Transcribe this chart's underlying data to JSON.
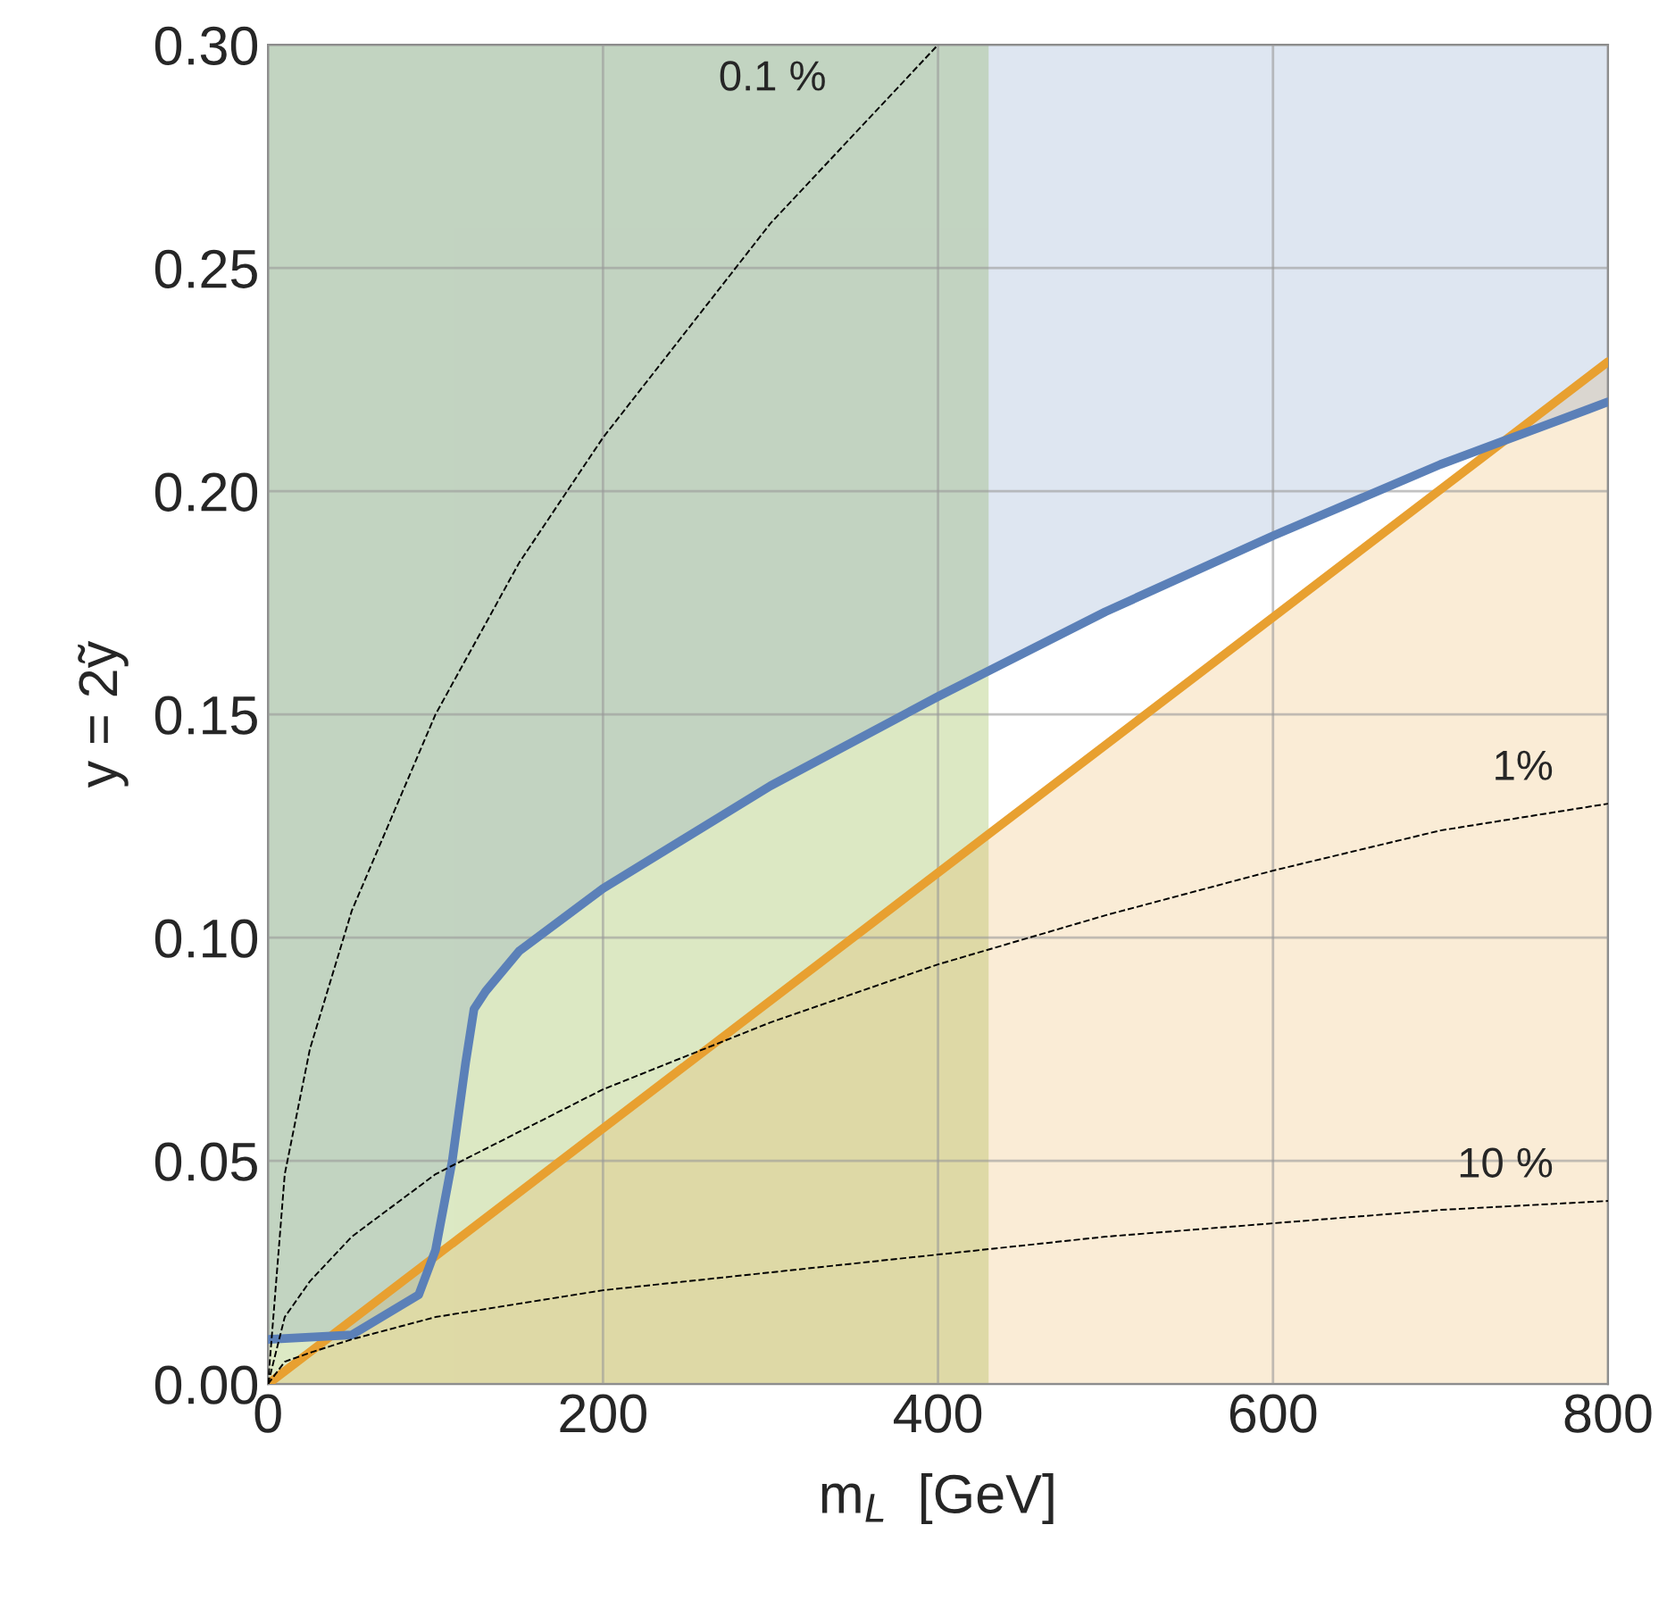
{
  "chart_data": {
    "type": "line",
    "xlabel": "m$_{L}$  [GeV]",
    "ylabel": "y = 2ỹ",
    "xlim": [
      0,
      800
    ],
    "ylim": [
      0,
      0.3
    ],
    "xticks": [
      0,
      200,
      400,
      600,
      800
    ],
    "yticks": [
      {
        "value": 0,
        "label": "0.00"
      },
      {
        "value": 0.05,
        "label": "0.05"
      },
      {
        "value": 0.1,
        "label": "0.10"
      },
      {
        "value": 0.15,
        "label": "0.15"
      },
      {
        "value": 0.2,
        "label": "0.20"
      },
      {
        "value": 0.25,
        "label": "0.25"
      },
      {
        "value": 0.3,
        "label": "0.30"
      }
    ],
    "grid": true,
    "legend": false,
    "marker": "none",
    "bands": [
      {
        "axis": "x",
        "from": 0,
        "to": 428,
        "color": "#8db63c"
      }
    ],
    "series": [
      {
        "color": "#e8a030",
        "line_style": "solid",
        "x": [
          0,
          800
        ],
        "values": [
          0.0,
          0.229
        ],
        "lower": [
          0,
          0
        ],
        "upper": [
          0.0,
          0.229
        ]
      },
      {
        "color": "#5b80b8",
        "line_style": "solid",
        "x": [
          0,
          50,
          90,
          100,
          110,
          118,
          123,
          130,
          150,
          200,
          300,
          400,
          500,
          600,
          700,
          800
        ],
        "values": [
          0.01,
          0.011,
          0.02,
          0.03,
          0.05,
          0.072,
          0.084,
          0.088,
          0.097,
          0.111,
          0.134,
          0.154,
          0.173,
          0.19,
          0.206,
          0.22
        ],
        "lower": [
          0.01,
          0.011,
          0.02,
          0.03,
          0.05,
          0.072,
          0.084,
          0.088,
          0.097,
          0.111,
          0.134,
          0.154,
          0.173,
          0.19,
          0.206,
          0.22
        ],
        "upper": [
          0.3,
          0.3,
          0.3,
          0.3,
          0.3,
          0.3,
          0.3,
          0.3,
          0.3,
          0.3,
          0.3,
          0.3,
          0.3,
          0.3,
          0.3,
          0.3
        ]
      },
      {
        "name": "0.1 %",
        "color": "#000000",
        "line_style": "dashed",
        "x": [
          0,
          10,
          25,
          50,
          100,
          150,
          200,
          300,
          400
        ],
        "values": [
          0,
          0.047,
          0.075,
          0.106,
          0.15,
          0.184,
          0.212,
          0.26,
          0.3
        ]
      },
      {
        "name": "1%",
        "color": "#000000",
        "line_style": "dashed",
        "x": [
          0,
          10,
          25,
          50,
          100,
          200,
          300,
          400,
          500,
          600,
          700,
          800
        ],
        "values": [
          0,
          0.015,
          0.023,
          0.033,
          0.047,
          0.066,
          0.081,
          0.094,
          0.105,
          0.115,
          0.124,
          0.13
        ]
      },
      {
        "name": "10 %",
        "color": "#000000",
        "line_style": "dashed",
        "x": [
          0,
          10,
          25,
          50,
          100,
          200,
          300,
          400,
          500,
          600,
          700,
          800
        ],
        "values": [
          0,
          0.005,
          0.007,
          0.01,
          0.015,
          0.021,
          0.025,
          0.029,
          0.033,
          0.036,
          0.039,
          0.041
        ]
      }
    ]
  }
}
